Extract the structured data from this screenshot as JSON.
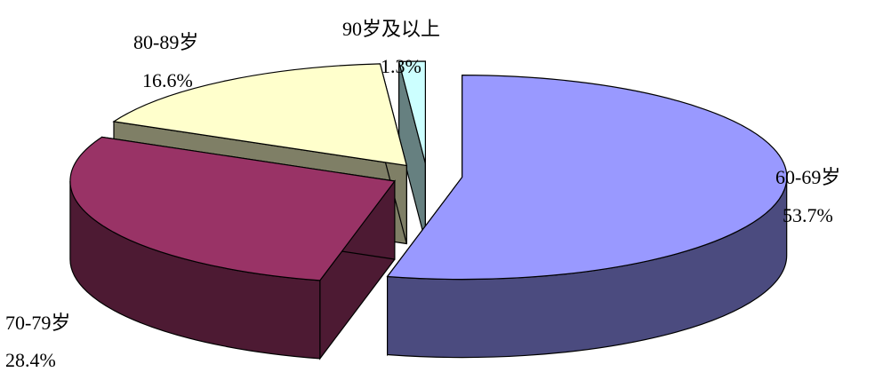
{
  "chart_data": {
    "type": "pie",
    "style": "3d-exploded",
    "legend": "none",
    "slices": [
      {
        "label": "60-69岁",
        "value": 53.7,
        "value_label": "53.7%",
        "color": "#9999ff",
        "side_color": "#4b4b7f"
      },
      {
        "label": "70-79岁",
        "value": 28.4,
        "value_label": "28.4%",
        "color": "#993366",
        "side_color": "#4d1a33"
      },
      {
        "label": "80-89岁",
        "value": 16.6,
        "value_label": "16.6%",
        "color": "#ffffcc",
        "side_color": "#7f7f66"
      },
      {
        "label": "90岁及以上",
        "value": 1.3,
        "value_label": "1.3%",
        "color": "#ccffff",
        "side_color": "#668080"
      }
    ]
  }
}
